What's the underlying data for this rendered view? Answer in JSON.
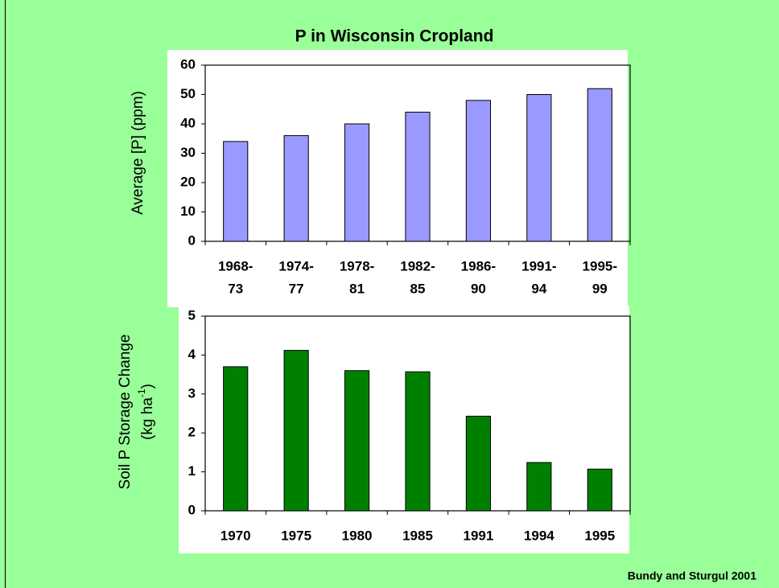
{
  "title": "P in Wisconsin Cropland",
  "source": "Bundy and Sturgul 2001",
  "chart_data": [
    {
      "type": "bar",
      "y_label": [
        "Average [P] (ppm)"
      ],
      "categories": [
        [
          "1968-",
          "73"
        ],
        [
          "1974-",
          "77"
        ],
        [
          "1978-",
          "81"
        ],
        [
          "1982-",
          "85"
        ],
        [
          "1986-",
          "90"
        ],
        [
          "1991-",
          "94"
        ],
        [
          "1995-",
          "99"
        ]
      ],
      "values": [
        34,
        36,
        40,
        44,
        48,
        50,
        52
      ],
      "color": "#9999ff",
      "ylim": [
        0,
        60
      ],
      "yticks": [
        0,
        10,
        20,
        30,
        40,
        50,
        60
      ],
      "grid": false
    },
    {
      "type": "bar",
      "y_label": [
        [
          "Soil P Storage Change"
        ],
        [
          "(kg ha",
          "-1",
          ")"
        ]
      ],
      "categories": [
        [
          "1970"
        ],
        [
          "1975"
        ],
        [
          "1980"
        ],
        [
          "1985"
        ],
        [
          "1991"
        ],
        [
          "1994"
        ],
        [
          "1995"
        ]
      ],
      "values": [
        3.7,
        4.12,
        3.6,
        3.57,
        2.43,
        1.24,
        1.07
      ],
      "color": "#008000",
      "ylim": [
        0,
        5
      ],
      "yticks": [
        0,
        1,
        2,
        3,
        4,
        5
      ],
      "grid": false
    }
  ]
}
